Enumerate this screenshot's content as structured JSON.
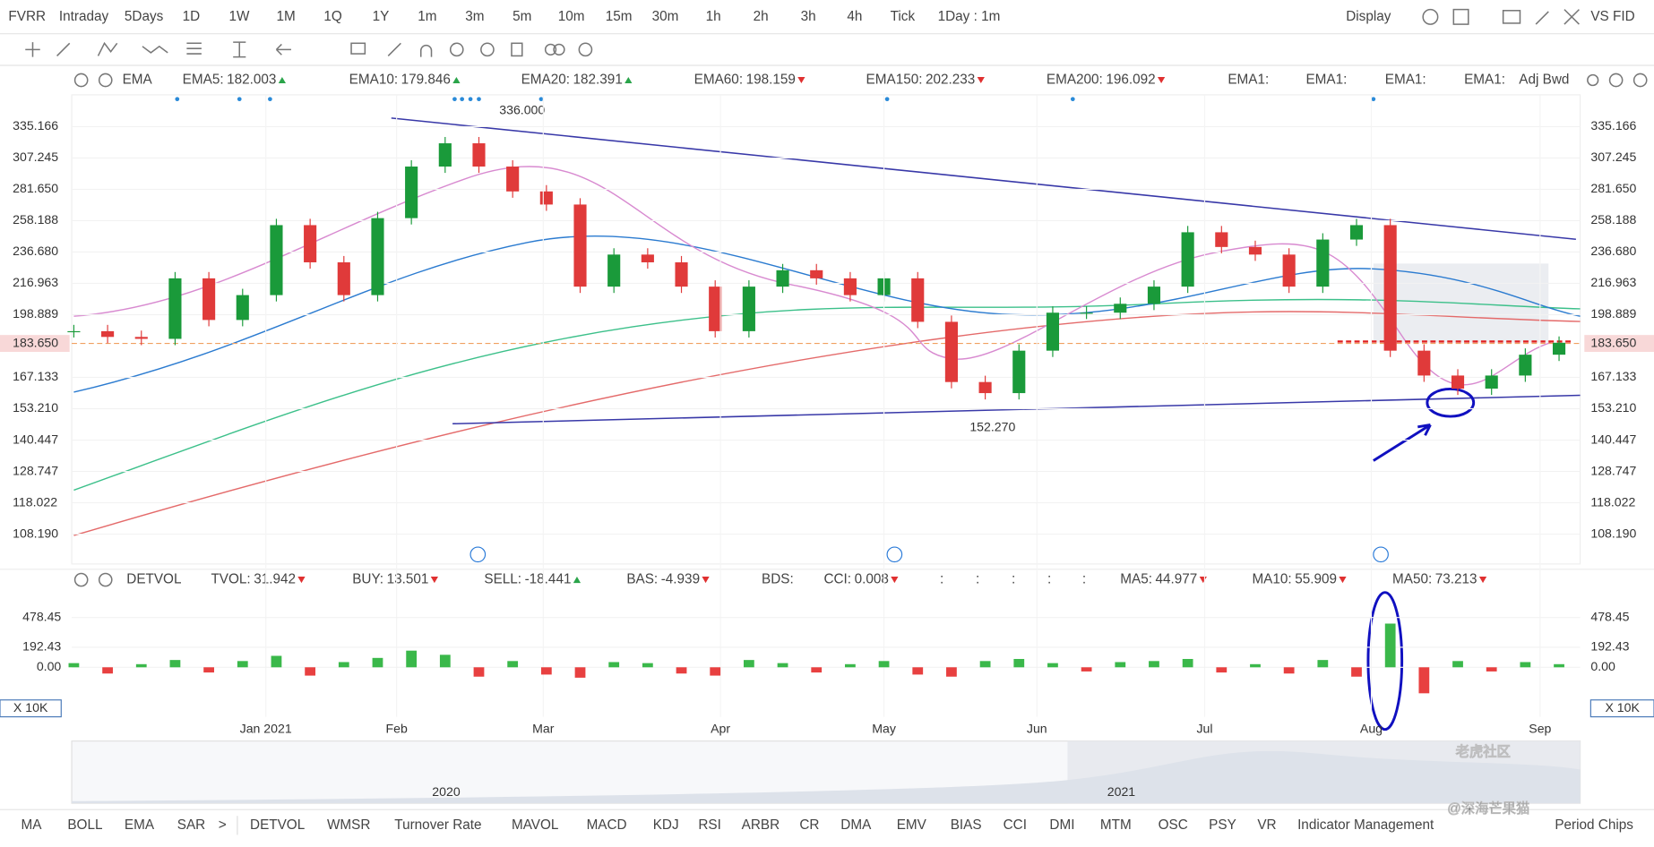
{
  "toolbar": {
    "symbol": "FVRR",
    "periods": [
      "Intraday",
      "5Days",
      "1D",
      "1W",
      "1M",
      "1Q",
      "1Y",
      "1m",
      "3m",
      "5m",
      "10m",
      "15m",
      "30m",
      "1h",
      "2h",
      "3h",
      "4h",
      "Tick",
      "1Day : 1m"
    ],
    "active": "1D",
    "display": "Display",
    "brand": "VS FID"
  },
  "ema_legend": {
    "name": "EMA",
    "items": [
      {
        "label": "EMA5:",
        "value": 182.003,
        "color": "#f0a030",
        "trend": "up"
      },
      {
        "label": "EMA10:",
        "value": 179.846,
        "color": "#2aa8d8",
        "trend": "up"
      },
      {
        "label": "EMA20:",
        "value": 182.391,
        "color": "#d070c0",
        "trend": "up"
      },
      {
        "label": "EMA60:",
        "value": 198.159,
        "color": "#1e6fc8",
        "trend": "down"
      },
      {
        "label": "EMA150:",
        "value": 202.233,
        "color": "#30b880",
        "trend": "down"
      },
      {
        "label": "EMA200:",
        "value": 196.092,
        "color": "#e04848",
        "trend": "down"
      }
    ],
    "faded": [
      "EMA1:",
      "EMA1:",
      "EMA1:",
      "EMA1:"
    ],
    "adjust": "Adj Bwd"
  },
  "chart_data": {
    "type": "candlestick",
    "values": [
      190,
      187,
      186,
      220,
      196,
      210,
      255,
      230,
      210,
      260,
      300,
      320,
      300,
      280,
      270,
      215,
      235,
      230,
      215,
      190,
      215,
      225,
      220,
      210,
      220,
      195,
      165,
      160,
      180,
      200,
      200,
      205,
      215,
      250,
      240,
      235,
      215,
      245,
      255,
      180,
      168,
      162,
      168,
      178,
      184
    ],
    "ylim": [
      99.6,
      366
    ],
    "log_scale": true,
    "yticks": [
      {
        "value": 108.19,
        "label": "108.190"
      },
      118.022,
      128.747,
      140.447,
      {
        "value": 153.21,
        "label": "153.210"
      },
      167.133,
      198.889,
      216.963,
      {
        "value": 236.68,
        "label": "236.680"
      },
      258.188,
      {
        "value": 281.65,
        "label": "281.650"
      },
      307.245,
      335.166
    ],
    "last_price": {
      "value": 183.65,
      "label": "183.650"
    },
    "annotations": [
      {
        "value": 336,
        "label": "336.000"
      },
      {
        "value": 152.27,
        "label": "152.270"
      }
    ],
    "x_labels": [
      "Jan 2021",
      "Feb",
      "Mar",
      "Apr",
      "May",
      "Jun",
      "Jul",
      "Aug",
      "Sep"
    ]
  },
  "volume_legend": {
    "name": "DETVOL",
    "items": [
      {
        "label": "TVOL:",
        "value": 31.942,
        "color": "#8a7bd0",
        "trend": "down"
      },
      {
        "label": "BUY:",
        "value": 13.501,
        "color": "#2aa44a",
        "trend": "down"
      },
      {
        "label": "SELL:",
        "value": -18.441,
        "color": "#e04040",
        "trend": "up"
      },
      {
        "label": "BAS:",
        "value": -4.939,
        "color": "#e0a020",
        "trend": "down"
      },
      {
        "label": "CCI:",
        "value": 0.008,
        "color": "#8a7bd0",
        "trend": "down"
      },
      {
        "label": "MA5:",
        "value": 44.977,
        "color": "#e0a020",
        "trend": "down"
      },
      {
        "label": "MA10:",
        "value": 55.909,
        "color": "#2aa8d8",
        "trend": "down"
      },
      {
        "label": "MA50:",
        "value": 73.213,
        "color": "#d070c0",
        "trend": "down"
      }
    ],
    "faded": [
      "BDS:"
    ],
    "separators": [
      ":",
      ":",
      ":",
      ":",
      ":"
    ]
  },
  "volume_chart": {
    "type": "bar",
    "values": [
      40,
      -60,
      30,
      70,
      -50,
      60,
      110,
      -80,
      50,
      90,
      160,
      120,
      -90,
      60,
      -70,
      -100,
      50,
      40,
      -60,
      -80,
      70,
      40,
      -50,
      30,
      60,
      -70,
      -90,
      60,
      80,
      40,
      -40,
      50,
      60,
      80,
      -50,
      30,
      -60,
      70,
      -90,
      420,
      -250,
      60,
      -40,
      50,
      30
    ],
    "ylim": [
      -476,
      740
    ],
    "yticks": [
      {
        "value": 0,
        "label": "0.00"
      },
      192.43,
      478.45
    ],
    "unit": "X 10K"
  },
  "navigator": {
    "labels": [
      "2020",
      "2021"
    ]
  },
  "indicator_tabs": {
    "items": [
      "MA",
      "BOLL",
      "EMA",
      "SAR",
      ">",
      "DETVOL",
      "WMSR",
      "Turnover Rate",
      "MAVOL",
      "MACD",
      "KDJ",
      "RSI",
      "ARBR",
      "CR",
      "DMA",
      "EMV",
      "BIAS",
      "CCI",
      "DMI",
      "MTM",
      "OSC",
      "PSY",
      "VR",
      "Indicator Management",
      "Period Chips"
    ],
    "active": [
      "EMA",
      "DETVOL",
      "Indicator Management"
    ]
  },
  "watermark": {
    "brand": "老虎社区",
    "author": "@深海芒果猫"
  }
}
